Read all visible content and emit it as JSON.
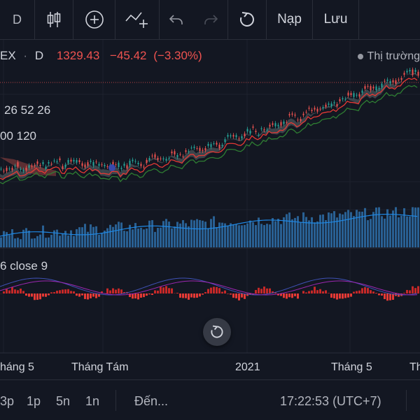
{
  "toolbar": {
    "interval": "D",
    "deposit_label": "Nạp",
    "save_label": "Lưu"
  },
  "header": {
    "symbol": "EX",
    "interval": "D",
    "price": "1329.43",
    "change": "−45.42",
    "change_pct": "(−3.30%)",
    "market_status": "Thị trường"
  },
  "indicators": {
    "ichimoku": "26 52 26",
    "ma": "00 120",
    "macd": "6 close 9"
  },
  "x_axis": [
    "háng 5",
    "Tháng Tám",
    "2021",
    "Tháng 5",
    "Th"
  ],
  "bottom": {
    "ranges": [
      "3p",
      "1p",
      "5n",
      "1n"
    ],
    "goto": "Đến...",
    "time": "17:22:53 (UTC+7)"
  },
  "colors": {
    "background": "#131722",
    "up": "#26a69a",
    "down": "#ef5350",
    "volume": "#3179b9",
    "ma_red": "#e53935",
    "ma_green": "#2e7d32",
    "macd_line": "#3f51b5",
    "signal_line": "#9c27b0"
  },
  "icons": [
    "candlestick-icon",
    "add-indicator-icon",
    "drawing-tool-icon",
    "undo-icon",
    "redo-icon",
    "reset-icon"
  ]
}
